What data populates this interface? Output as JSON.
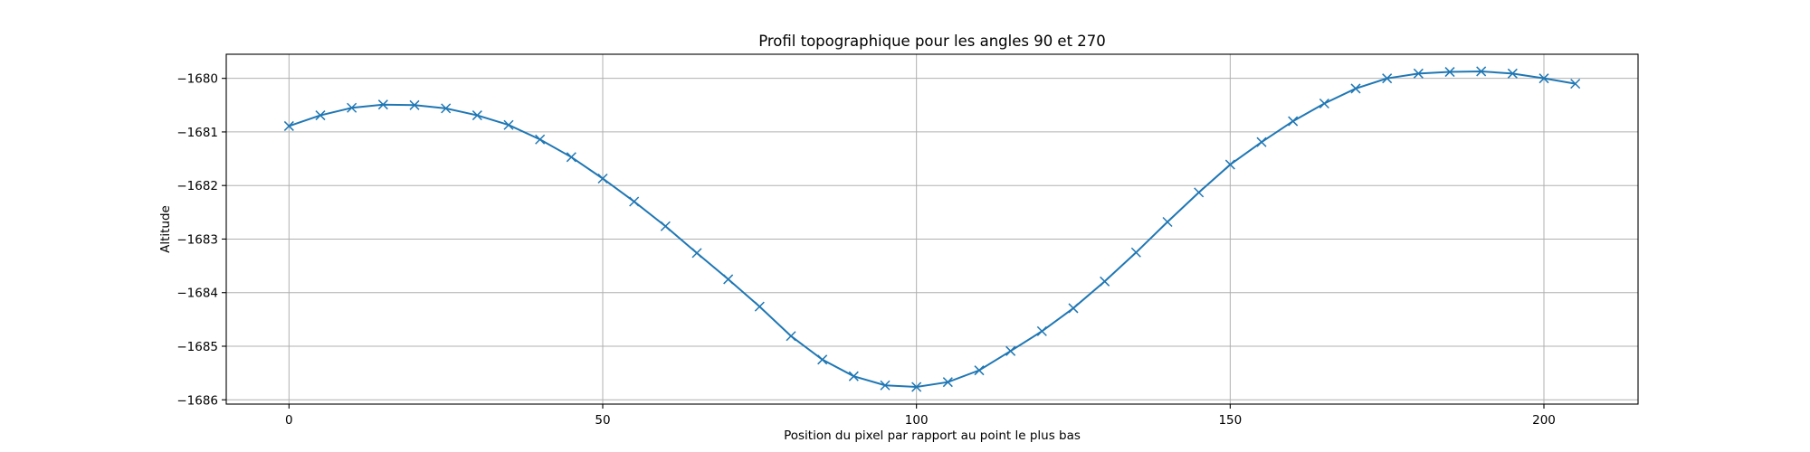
{
  "chart_data": {
    "type": "line",
    "title": "Profil topographique pour les angles 90 et 270",
    "xlabel": "Position du pixel par rapport au point le plus bas",
    "ylabel": "Altitude",
    "xlim": [
      -10,
      215
    ],
    "ylim": [
      -1686.08,
      -1679.55
    ],
    "xticks": [
      0,
      50,
      100,
      150,
      200
    ],
    "yticks": [
      -1686,
      -1685,
      -1684,
      -1683,
      -1682,
      -1681,
      -1680
    ],
    "xtick_labels": [
      "0",
      "50",
      "100",
      "150",
      "200"
    ],
    "ytick_labels": [
      "−1686",
      "−1685",
      "−1684",
      "−1683",
      "−1682",
      "−1681",
      "−1680"
    ],
    "grid": true,
    "marker": "x",
    "color": "#1f77b4",
    "series": [
      {
        "x": [
          0,
          5,
          10,
          15,
          20,
          25,
          30,
          35,
          40,
          45,
          50,
          55,
          60,
          65,
          70,
          75,
          80,
          85,
          90,
          95,
          100,
          105,
          110,
          115,
          120,
          125,
          130,
          135,
          140,
          145,
          150,
          155,
          160,
          165,
          170,
          175,
          180,
          185,
          190,
          195,
          200,
          205
        ],
        "y": [
          -1680.89,
          -1680.69,
          -1680.55,
          -1680.49,
          -1680.5,
          -1680.56,
          -1680.69,
          -1680.87,
          -1681.14,
          -1681.47,
          -1681.87,
          -1682.3,
          -1682.76,
          -1683.26,
          -1683.75,
          -1684.26,
          -1684.81,
          -1685.25,
          -1685.56,
          -1685.73,
          -1685.76,
          -1685.67,
          -1685.45,
          -1685.09,
          -1684.72,
          -1684.29,
          -1683.79,
          -1683.25,
          -1682.68,
          -1682.13,
          -1681.61,
          -1681.19,
          -1680.8,
          -1680.47,
          -1680.19,
          -1680.0,
          -1679.91,
          -1679.88,
          -1679.87,
          -1679.91,
          -1680.0,
          -1680.1
        ]
      }
    ]
  }
}
